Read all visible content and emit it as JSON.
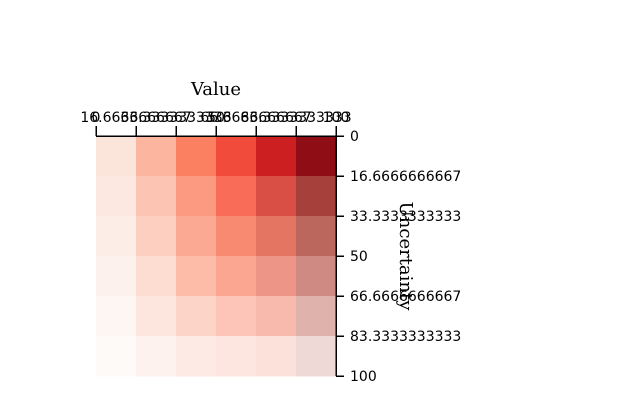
{
  "chart_data": {
    "type": "heatmap",
    "colormap": "Reds",
    "xlabel": "Value",
    "ylabel": "Uncertainty",
    "x_ticks": [
      "0",
      "16.6666666667",
      "33.3333333333",
      "50",
      "66.6666666667",
      "83.3333333333",
      "100"
    ],
    "y_ticks": [
      "0",
      "16.6666666667",
      "33.3333333333",
      "50",
      "66.6666666667",
      "83.3333333333",
      "100"
    ],
    "x_axis_position": "top",
    "y_axis_position": "right",
    "cells": [
      [
        "#fbe4d9",
        "#fcb69f",
        "#fb8061",
        "#f14c3b",
        "#cc1f21",
        "#8f0d15"
      ],
      [
        "#fce8e0",
        "#fcc4b2",
        "#fb9a80",
        "#f86c58",
        "#da4f45",
        "#a5403a"
      ],
      [
        "#fdede7",
        "#fccfc0",
        "#fba993",
        "#f98a72",
        "#e47563",
        "#bb675e"
      ],
      [
        "#fdf1ed",
        "#fdddd2",
        "#fcbca8",
        "#faa691",
        "#ed9687",
        "#cf8b83"
      ],
      [
        "#fef6f3",
        "#fde6de",
        "#fdd4c8",
        "#fcc5b7",
        "#f7baad",
        "#e0b2ac"
      ],
      [
        "#fefaf8",
        "#fef2ee",
        "#feeae4",
        "#fde6df",
        "#fce1da",
        "#efd9d6"
      ]
    ]
  }
}
